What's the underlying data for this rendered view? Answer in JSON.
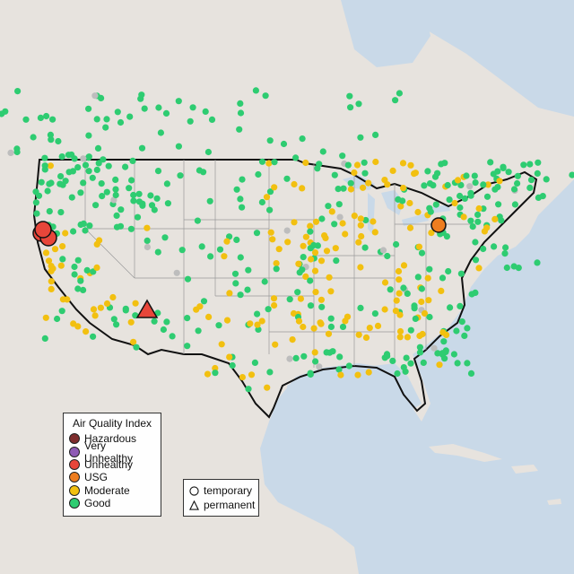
{
  "legend": {
    "title": "Air Quality Index",
    "categories": [
      {
        "label": "Hazardous",
        "color": "#7e2d2d"
      },
      {
        "label": "Very Unhealthy",
        "color": "#8e5bb5"
      },
      {
        "label": "Unhealthy",
        "color": "#e8463a"
      },
      {
        "label": "USG",
        "color": "#ee7d1f"
      },
      {
        "label": "Moderate",
        "color": "#f2c010"
      },
      {
        "label": "Good",
        "color": "#2ecc71"
      }
    ],
    "shapes": [
      {
        "label": "temporary",
        "icon": "circle-outline-icon"
      },
      {
        "label": "permanent",
        "icon": "triangle-outline-icon"
      }
    ]
  },
  "colors": {
    "water": "#c9d9e8",
    "land": "#e7e3de",
    "no_data_marker": "#bdbdbd",
    "border": "#111111"
  }
}
